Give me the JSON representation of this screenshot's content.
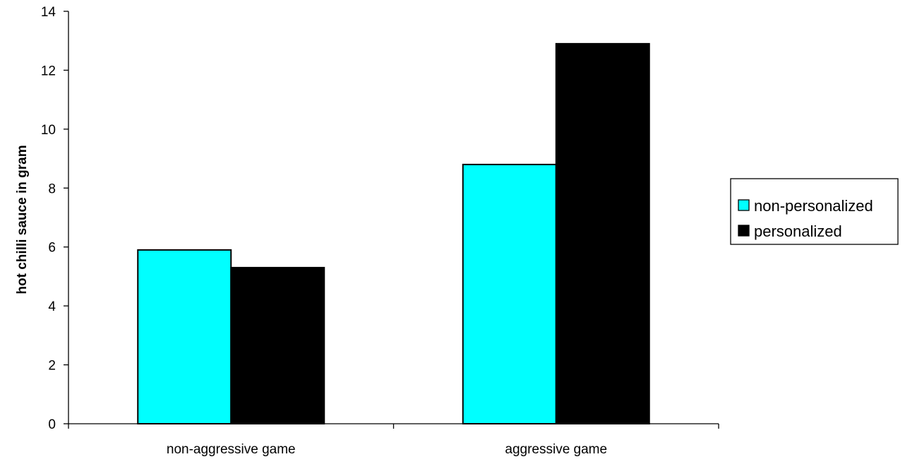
{
  "chart_data": {
    "type": "bar",
    "categories": [
      "non-aggressive game",
      "aggressive game"
    ],
    "series": [
      {
        "name": "non-personalized",
        "values": [
          5.9,
          8.8
        ],
        "color": "#00FFFF"
      },
      {
        "name": "personalized",
        "values": [
          5.3,
          12.9
        ],
        "color": "#000000"
      }
    ],
    "title": "",
    "xlabel": "",
    "ylabel": "hot chilli sauce in gram",
    "ylim": [
      0,
      14
    ],
    "yticks": [
      0,
      2,
      4,
      6,
      8,
      10,
      12,
      14
    ],
    "grid": false,
    "legend_position": "right"
  }
}
